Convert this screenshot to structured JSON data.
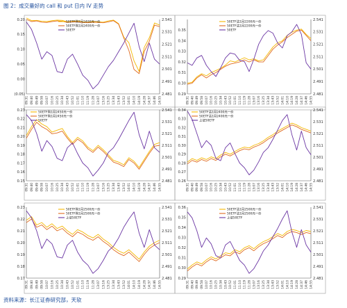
{
  "figure": {
    "title": "图 2：成交量好的 call 和 put 日内 IV 走势",
    "source": "资料来源：长江证券研究部，天软"
  },
  "colors": {
    "call": "#f5b800",
    "put": "#e06a1e",
    "etf": "#6a35a3",
    "red_label": "#e0201b",
    "title": "#1f4e9c"
  },
  "time_labels": [
    "09:31",
    "09:40",
    "09:49",
    "09:58",
    "10:07",
    "10:16",
    "10:25",
    "10:34",
    "10:43",
    "10:52",
    "11:01",
    "11:10",
    "11:19",
    "11:28",
    "13:07",
    "13:16",
    "13:25",
    "13:34",
    "13:43",
    "13:52",
    "14:01",
    "14:10",
    "14:19",
    "14:28",
    "14:37",
    "14:46",
    "14:55"
  ],
  "chart_data": [
    {
      "type": "line",
      "panel": "top-left",
      "x": [
        "09:31",
        "09:40",
        "09:49",
        "09:58",
        "10:07",
        "10:16",
        "10:25",
        "10:34",
        "10:43",
        "10:52",
        "11:01",
        "11:10",
        "11:19",
        "11:28",
        "13:07",
        "13:16",
        "13:25",
        "13:34",
        "13:43",
        "13:52",
        "14:01",
        "14:10",
        "14:19",
        "14:28",
        "14:37",
        "14:46",
        "14:55"
      ],
      "left_axis": {
        "ticks": [
          "0.20",
          "0.15",
          "0.10",
          "0.05",
          "0.00",
          "(0.05)"
        ],
        "ylim": [
          -0.05,
          0.2
        ]
      },
      "right_axis": {
        "ticks": [
          "2.541",
          "2.531",
          "2.521",
          "2.511",
          "2.501",
          "2.491",
          "2.481"
        ],
        "ylim": [
          2.481,
          2.541
        ]
      },
      "legend_position": "top-center",
      "series": [
        {
          "name": "50ETF购1月2400元一价",
          "color_key": "call",
          "axis": "left",
          "values": [
            0.205,
            0.196,
            0.197,
            0.194,
            0.193,
            0.196,
            0.198,
            0.197,
            0.192,
            0.194,
            0.195,
            0.192,
            0.191,
            0.193,
            0.192,
            0.191,
            0.195,
            0.198,
            0.186,
            0.141,
            0.122,
            0.061,
            0.025,
            0.106,
            0.139,
            0.188,
            0.181
          ]
        },
        {
          "name": "50ETF购1月2400元一价",
          "color_key": "put",
          "axis": "left",
          "values": [
            0.2,
            0.193,
            0.195,
            0.191,
            0.19,
            0.193,
            0.195,
            0.194,
            0.19,
            0.192,
            0.192,
            0.19,
            0.189,
            0.191,
            0.19,
            0.189,
            0.192,
            0.196,
            0.184,
            0.138,
            0.096,
            0.032,
            0.018,
            0.092,
            0.127,
            0.181,
            0.176
          ]
        },
        {
          "name": "50ETF",
          "color_key": "etf",
          "axis": "right",
          "values": [
            2.539,
            2.533,
            2.522,
            2.509,
            2.515,
            2.512,
            2.499,
            2.498,
            2.509,
            2.513,
            2.505,
            2.496,
            2.492,
            2.485,
            2.489,
            2.496,
            2.503,
            2.508,
            2.515,
            2.522,
            2.53,
            2.538,
            2.519,
            2.507,
            2.522,
            2.509,
            2.505
          ]
        }
      ],
      "annotations": []
    },
    {
      "type": "line",
      "panel": "top-right",
      "x": [
        "09:31",
        "09:40",
        "09:49",
        "09:58",
        "10:07",
        "10:16",
        "10:25",
        "10:34",
        "10:43",
        "10:52",
        "11:01",
        "11:10",
        "11:19",
        "11:28",
        "13:07",
        "13:16",
        "13:25",
        "13:34",
        "13:43",
        "13:52",
        "14:01",
        "14:10",
        "14:19",
        "14:28",
        "14:37",
        "14:46",
        "14:55"
      ],
      "left_axis": {
        "ticks": [
          "0.35",
          "0.34",
          "0.33",
          "0.32",
          "0.31",
          "0.30",
          "0.29"
        ],
        "ylim": [
          0.29,
          0.36
        ]
      },
      "right_axis": {
        "ticks": [
          "2.541",
          "2.531",
          "2.521",
          "2.511",
          "2.501",
          "2.491",
          "2.481"
        ],
        "ylim": [
          2.481,
          2.541
        ]
      },
      "legend_position": "top-center",
      "series": [
        {
          "name": "50ETF沽1月2200元一价",
          "color_key": "call",
          "axis": "left",
          "values": [
            0.3,
            0.301,
            0.306,
            0.309,
            0.307,
            0.31,
            0.312,
            0.314,
            0.317,
            0.321,
            0.32,
            0.322,
            0.324,
            0.322,
            0.323,
            0.321,
            0.322,
            0.328,
            0.334,
            0.338,
            0.34,
            0.345,
            0.348,
            0.35,
            0.351,
            0.346,
            0.342
          ]
        },
        {
          "name": "50ETF沽1月2200元一价",
          "color_key": "put",
          "axis": "left",
          "values": [
            0.299,
            0.3,
            0.305,
            0.308,
            0.305,
            0.308,
            0.31,
            0.313,
            0.316,
            0.318,
            0.319,
            0.32,
            0.322,
            0.32,
            0.322,
            0.32,
            0.32,
            0.326,
            0.332,
            0.336,
            0.339,
            0.343,
            0.346,
            0.349,
            0.35,
            0.345,
            0.34
          ]
        },
        {
          "name": "50ETF",
          "color_key": "etf",
          "axis": "right",
          "values": [
            2.506,
            2.504,
            2.51,
            2.512,
            2.504,
            2.499,
            2.495,
            2.502,
            2.51,
            2.514,
            2.513,
            2.508,
            2.507,
            2.499,
            2.509,
            2.521,
            2.528,
            2.532,
            2.53,
            2.522,
            2.518,
            2.528,
            2.531,
            2.537,
            2.529,
            2.506,
            2.501
          ]
        }
      ],
      "annotations": []
    },
    {
      "type": "line",
      "panel": "middle-left",
      "x": [
        "09:31",
        "09:40",
        "09:49",
        "09:58",
        "10:07",
        "10:16",
        "10:25",
        "10:34",
        "10:43",
        "10:52",
        "11:01",
        "11:10",
        "11:19",
        "11:28",
        "13:07",
        "13:16",
        "13:25",
        "13:34",
        "13:43",
        "13:52",
        "14:01",
        "14:10",
        "14:19",
        "14:28",
        "14:37",
        "14:46",
        "14:55"
      ],
      "left_axis": {
        "ticks": [
          "0.23",
          "0.22",
          "0.21",
          "0.20",
          "0.19",
          "0.18",
          "0.17",
          "0.16",
          "0.15"
        ],
        "ylim": [
          0.15,
          0.23
        ]
      },
      "right_axis": {
        "ticks": [
          "2.541",
          "2.531",
          "2.521",
          "2.511",
          "2.501",
          "2.491",
          "2.481"
        ],
        "ylim": [
          2.481,
          2.541
        ]
      },
      "legend_position": "top-left",
      "series": [
        {
          "name": "50ETF购1月2450元一价",
          "color_key": "call",
          "axis": "left",
          "values": [
            0.201,
            0.211,
            0.219,
            0.214,
            0.211,
            0.205,
            0.207,
            0.209,
            0.2,
            0.193,
            0.199,
            0.195,
            0.188,
            0.184,
            0.19,
            0.185,
            0.179,
            0.173,
            0.171,
            0.168,
            0.176,
            0.172,
            0.165,
            0.174,
            0.183,
            0.191,
            0.193
          ]
        },
        {
          "name": "50ETF购1月2450元一价",
          "color_key": "put",
          "axis": "left",
          "values": [
            0.198,
            0.208,
            0.216,
            0.211,
            0.208,
            0.203,
            0.204,
            0.206,
            0.198,
            0.191,
            0.197,
            0.193,
            0.186,
            0.182,
            0.188,
            0.183,
            0.177,
            0.171,
            0.169,
            0.166,
            0.174,
            0.17,
            0.163,
            0.172,
            0.181,
            0.189,
            0.19
          ]
        },
        {
          "name": "50ETF",
          "color_key": "etf",
          "axis": "right",
          "values": [
            2.537,
            2.532,
            2.521,
            2.506,
            2.515,
            2.51,
            2.5,
            2.498,
            2.509,
            2.513,
            2.504,
            2.496,
            2.492,
            2.485,
            2.49,
            2.496,
            2.505,
            2.509,
            2.516,
            2.524,
            2.532,
            2.539,
            2.52,
            2.508,
            2.523,
            2.509,
            2.505
          ]
        }
      ],
      "annotations": []
    },
    {
      "type": "line",
      "panel": "middle-right",
      "x": [
        "09:31",
        "09:40",
        "09:49",
        "09:58",
        "10:07",
        "10:16",
        "10:25",
        "10:34",
        "10:43",
        "10:52",
        "11:01",
        "11:10",
        "11:19",
        "11:28",
        "13:07",
        "13:16",
        "13:25",
        "13:34",
        "13:43",
        "13:52",
        "14:01",
        "14:10",
        "14:19",
        "14:28",
        "14:37",
        "14:46",
        "14:55"
      ],
      "left_axis": {
        "ticks": [
          "0.34",
          "0.33",
          "0.32",
          "0.31",
          "0.30",
          "0.29",
          "0.28",
          "0.27",
          "0.26"
        ],
        "ylim": [
          0.26,
          0.34
        ]
      },
      "right_axis": {
        "ticks": [
          "2.541",
          "2.531",
          "2.521",
          "2.511",
          "2.501",
          "2.491",
          "2.481"
        ],
        "ylim": [
          2.481,
          2.541
        ]
      },
      "legend_position": "top-left",
      "series": [
        {
          "name": "50ETF沽1月2400元一价",
          "color_key": "call",
          "axis": "left",
          "values": [
            0.281,
            0.285,
            0.283,
            0.286,
            0.284,
            0.287,
            0.285,
            0.289,
            0.292,
            0.29,
            0.293,
            0.296,
            0.298,
            0.297,
            0.3,
            0.302,
            0.305,
            0.309,
            0.312,
            0.316,
            0.319,
            0.322,
            0.325,
            0.323,
            0.32,
            0.318,
            0.316
          ]
        },
        {
          "name": "50ETF沽1月2400元一价",
          "color_key": "put",
          "axis": "left",
          "values": [
            0.279,
            0.283,
            0.281,
            0.284,
            0.282,
            0.285,
            0.283,
            0.287,
            0.29,
            0.288,
            0.291,
            0.294,
            0.296,
            0.295,
            0.298,
            0.3,
            0.303,
            0.307,
            0.31,
            0.314,
            0.317,
            0.32,
            0.323,
            0.321,
            0.318,
            0.316,
            0.314
          ]
        },
        {
          "name": "上证50ETF",
          "color_key": "etf",
          "axis": "right",
          "values": [
            2.54,
            2.533,
            2.521,
            2.509,
            2.515,
            2.511,
            2.5,
            2.498,
            2.509,
            2.513,
            2.504,
            2.496,
            2.492,
            2.486,
            2.49,
            2.497,
            2.505,
            2.509,
            2.516,
            2.524,
            2.532,
            2.537,
            2.52,
            2.507,
            2.523,
            2.509,
            2.503
          ]
        }
      ],
      "annotations": []
    },
    {
      "type": "line",
      "panel": "bottom-left",
      "x": [
        "09:31",
        "09:40",
        "09:49",
        "09:58",
        "10:07",
        "10:16",
        "10:25",
        "10:34",
        "10:43",
        "10:52",
        "11:01",
        "11:10",
        "11:19",
        "11:28",
        "13:07",
        "13:16",
        "13:25",
        "13:34",
        "13:43",
        "13:52",
        "14:01",
        "14:10",
        "14:19",
        "14:28",
        "14:37",
        "14:46",
        "14:55"
      ],
      "left_axis": {
        "ticks": [
          "0.23",
          "0.22",
          "0.21",
          "0.20",
          "0.19",
          "0.18",
          "0.17"
        ],
        "ylim": [
          0.17,
          0.23
        ]
      },
      "right_axis": {
        "ticks": [
          "2.541",
          "2.531",
          "2.521",
          "2.511",
          "2.501",
          "2.491",
          "2.481"
        ],
        "ylim": [
          2.481,
          2.541
        ]
      },
      "legend_position": "top-center",
      "series": [
        {
          "name": "50ETF购1月2500元一价",
          "color_key": "call",
          "axis": "left",
          "values": [
            0.219,
            0.222,
            0.215,
            0.217,
            0.213,
            0.216,
            0.212,
            0.214,
            0.21,
            0.207,
            0.211,
            0.209,
            0.206,
            0.204,
            0.207,
            0.203,
            0.2,
            0.196,
            0.193,
            0.191,
            0.194,
            0.19,
            0.186,
            0.192,
            0.197,
            0.2,
            0.202
          ]
        },
        {
          "name": "50ETF购1月2500元一价",
          "color_key": "put",
          "axis": "left",
          "values": [
            0.217,
            0.22,
            0.213,
            0.215,
            0.211,
            0.214,
            0.21,
            0.212,
            0.208,
            0.205,
            0.209,
            0.207,
            0.204,
            0.202,
            0.205,
            0.201,
            0.198,
            0.194,
            0.191,
            0.189,
            0.192,
            0.188,
            0.184,
            0.19,
            0.195,
            0.198,
            0.2
          ]
        },
        {
          "name": "上证50ETF",
          "color_key": "etf",
          "axis": "right",
          "values": [
            2.538,
            2.532,
            2.521,
            2.506,
            2.514,
            2.51,
            2.499,
            2.498,
            2.509,
            2.513,
            2.503,
            2.496,
            2.492,
            2.485,
            2.489,
            2.496,
            2.504,
            2.508,
            2.515,
            2.524,
            2.531,
            2.537,
            2.519,
            2.507,
            2.522,
            2.509,
            2.505
          ]
        }
      ],
      "annotations": []
    },
    {
      "type": "line",
      "panel": "bottom-right",
      "x": [
        "09:31",
        "09:40",
        "09:49",
        "09:58",
        "10:07",
        "10:16",
        "10:25",
        "10:34",
        "10:43",
        "10:52",
        "11:01",
        "11:10",
        "11:19",
        "11:28",
        "13:07",
        "13:16",
        "13:25",
        "13:34",
        "13:43",
        "13:52",
        "14:01",
        "14:10",
        "14:19",
        "14:28",
        "14:37",
        "14:46",
        "14:55"
      ],
      "left_axis": {
        "ticks": [
          "0.36",
          "0.35",
          "0.34",
          "0.33",
          "0.32",
          "0.31",
          "0.30",
          "0.29"
        ],
        "ylim": [
          0.29,
          0.36
        ]
      },
      "right_axis": {
        "ticks": [
          "2.541",
          "2.531",
          "2.521",
          "2.511",
          "2.501",
          "2.491",
          "2.481"
        ],
        "ylim": [
          2.481,
          2.541
        ]
      },
      "legend_position": "top-center",
      "series": [
        {
          "name": "50ETF沽1月2500元一价",
          "color_key": "call",
          "axis": "left",
          "values": [
            0.299,
            0.303,
            0.306,
            0.304,
            0.308,
            0.311,
            0.309,
            0.312,
            0.315,
            0.314,
            0.318,
            0.316,
            0.32,
            0.322,
            0.319,
            0.323,
            0.326,
            0.328,
            0.331,
            0.334,
            0.332,
            0.336,
            0.338,
            0.337,
            0.335,
            0.337,
            0.336
          ]
        },
        {
          "name": "50ETF沽1月2500元一价",
          "color_key": "put",
          "axis": "left",
          "values": [
            0.297,
            0.301,
            0.304,
            0.302,
            0.306,
            0.309,
            0.307,
            0.31,
            0.313,
            0.312,
            0.316,
            0.314,
            0.318,
            0.32,
            0.317,
            0.321,
            0.324,
            0.326,
            0.329,
            0.332,
            0.33,
            0.334,
            0.336,
            0.335,
            0.333,
            0.335,
            0.334
          ]
        },
        {
          "name": "上证50ETF",
          "color_key": "etf",
          "axis": "right",
          "values": [
            2.537,
            2.532,
            2.521,
            2.507,
            2.515,
            2.51,
            2.5,
            2.498,
            2.509,
            2.512,
            2.504,
            2.496,
            2.492,
            2.485,
            2.489,
            2.496,
            2.504,
            2.509,
            2.516,
            2.523,
            2.531,
            2.538,
            2.52,
            2.507,
            2.522,
            2.509,
            2.503
          ]
        }
      ],
      "annotations": []
    }
  ]
}
